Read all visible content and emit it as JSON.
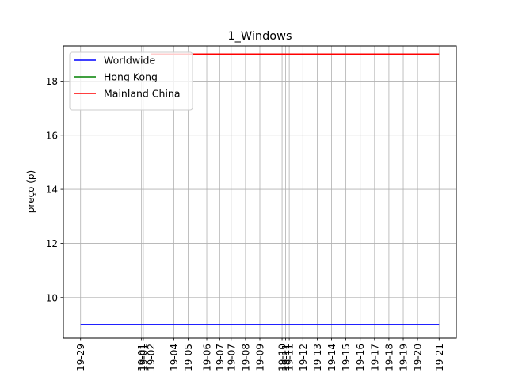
{
  "chart_data": {
    "type": "line",
    "title": "1_Windows",
    "xlabel": "",
    "ylabel": "preço (p)",
    "ylim": [
      8.5,
      19.3
    ],
    "yticks": [
      10,
      12,
      14,
      16,
      18
    ],
    "grid": true,
    "legend_position": "top-left",
    "x_ticks": [
      {
        "x": 0,
        "label": "19-29"
      },
      {
        "x": 8.5,
        "label": "19-01"
      },
      {
        "x": 8.75,
        "label": "19-01"
      },
      {
        "x": 9.8,
        "label": "19-02"
      },
      {
        "x": 13,
        "label": "19-04"
      },
      {
        "x": 15,
        "label": "19-05"
      },
      {
        "x": 17.6,
        "label": "19-06"
      },
      {
        "x": 19.4,
        "label": "19-07"
      },
      {
        "x": 21,
        "label": "19-07"
      },
      {
        "x": 23,
        "label": "19-08"
      },
      {
        "x": 25,
        "label": "19-09"
      },
      {
        "x": 28.1,
        "label": "19-10"
      },
      {
        "x": 28.6,
        "label": "19-11"
      },
      {
        "x": 29.1,
        "label": "19-11"
      },
      {
        "x": 31,
        "label": "19-12"
      },
      {
        "x": 33,
        "label": "19-13"
      },
      {
        "x": 35,
        "label": "19-14"
      },
      {
        "x": 37,
        "label": "19-15"
      },
      {
        "x": 39,
        "label": "19-16"
      },
      {
        "x": 41,
        "label": "19-17"
      },
      {
        "x": 43,
        "label": "19-18"
      },
      {
        "x": 45,
        "label": "19-19"
      },
      {
        "x": 47,
        "label": "19-20"
      },
      {
        "x": 50,
        "label": "19-21"
      }
    ],
    "xlim": [
      -2.4,
      52.4
    ],
    "series": [
      {
        "name": "Worldwide",
        "color": "#0000ff",
        "x": [
          0,
          50
        ],
        "values": [
          9.0,
          9.0
        ]
      },
      {
        "name": "Hong Kong",
        "color": "#008000",
        "x": [
          9.8,
          50
        ],
        "values": [
          19.0,
          19.0
        ]
      },
      {
        "name": "Mainland China",
        "color": "#ff0000",
        "x": [
          9.8,
          50
        ],
        "values": [
          19.0,
          19.0
        ]
      }
    ]
  }
}
